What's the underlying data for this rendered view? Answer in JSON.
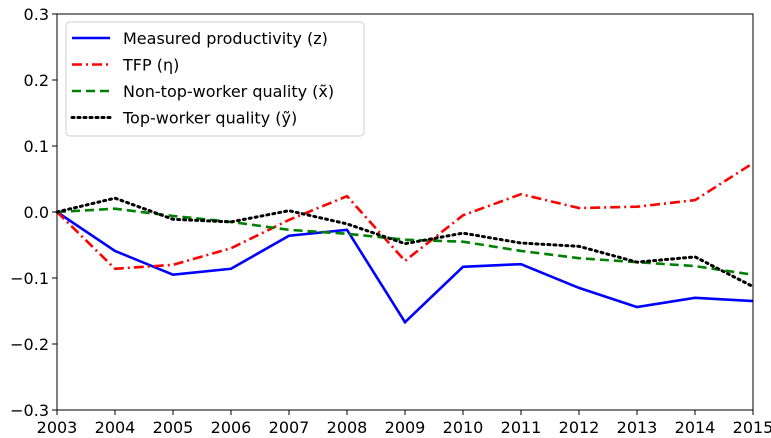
{
  "chart_data": {
    "type": "line",
    "title": "",
    "xlabel": "",
    "ylabel": "",
    "xlim": [
      2003,
      2015
    ],
    "ylim": [
      -0.3,
      0.3
    ],
    "grid": false,
    "legend_placement": "top-left",
    "x": [
      2003,
      2004,
      2005,
      2006,
      2007,
      2008,
      2009,
      2010,
      2011,
      2012,
      2013,
      2014,
      2015
    ],
    "xticks": [
      "2003",
      "2004",
      "2005",
      "2006",
      "2007",
      "2008",
      "2009",
      "2010",
      "2011",
      "2012",
      "2013",
      "2014",
      "2015"
    ],
    "yticks": [
      -0.3,
      -0.2,
      -0.1,
      0.0,
      0.1,
      0.2,
      0.3
    ],
    "ytick_labels": [
      "−0.3",
      "−0.2",
      "−0.1",
      "0.0",
      "0.1",
      "0.2",
      "0.3"
    ],
    "series": [
      {
        "name": "Measured productivity (z)",
        "color": "#0000ff",
        "style": "solid",
        "values": [
          0,
          -0.059,
          -0.095,
          -0.086,
          -0.036,
          -0.027,
          -0.167,
          -0.083,
          -0.079,
          -0.115,
          -0.144,
          -0.13,
          -0.135
        ]
      },
      {
        "name": "TFP (η)",
        "color": "#ff0000",
        "style": "dashdot",
        "values": [
          0,
          -0.086,
          -0.08,
          -0.055,
          -0.012,
          0.024,
          -0.074,
          -0.005,
          0.027,
          0.006,
          0.008,
          0.018,
          0.074
        ]
      },
      {
        "name": "Non-top-worker quality (x̃)",
        "color": "#008000",
        "style": "dashed",
        "values": [
          0,
          0.005,
          -0.006,
          -0.015,
          -0.027,
          -0.033,
          -0.042,
          -0.045,
          -0.059,
          -0.07,
          -0.076,
          -0.082,
          -0.095
        ]
      },
      {
        "name": "Top-worker quality (ỹ)",
        "color": "#000000",
        "style": "dotted",
        "values": [
          0,
          0.021,
          -0.011,
          -0.015,
          0.002,
          -0.018,
          -0.048,
          -0.032,
          -0.047,
          -0.052,
          -0.076,
          -0.068,
          -0.113
        ]
      }
    ]
  }
}
